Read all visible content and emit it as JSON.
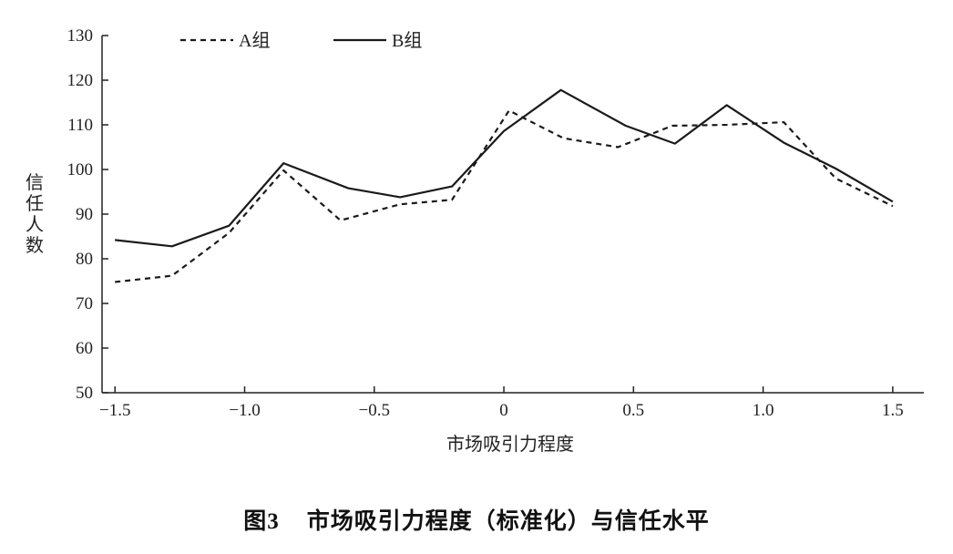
{
  "chart_data": {
    "type": "line",
    "xlabel": "市场吸引力程度",
    "ylabel": "信任人数",
    "xlim": [
      -1.55,
      1.62
    ],
    "ylim": [
      50,
      130
    ],
    "x_ticks": [
      -1.5,
      -1.0,
      -0.5,
      0,
      0.5,
      1.0,
      1.5
    ],
    "x_tick_labels": [
      "−1.5",
      "−1.0",
      "−0.5",
      "0",
      "0.5",
      "1.0",
      "1.5"
    ],
    "y_ticks": [
      50,
      60,
      70,
      80,
      90,
      100,
      110,
      120,
      130
    ],
    "y_tick_labels": [
      "50",
      "60",
      "70",
      "80",
      "90",
      "100",
      "110",
      "120",
      "130"
    ],
    "legend_position": "top-left",
    "grid": false,
    "series": [
      {
        "name": "A组",
        "style": "dashed",
        "x": [
          -1.5,
          -1.28,
          -1.06,
          -0.85,
          -0.63,
          -0.4,
          -0.2,
          0.02,
          0.23,
          0.44,
          0.65,
          0.86,
          1.08,
          1.28,
          1.5
        ],
        "y": [
          74.8,
          76.2,
          85.8,
          99.8,
          88.6,
          92.2,
          93.2,
          113.2,
          107.0,
          105.0,
          109.8,
          110.0,
          110.6,
          98.0,
          91.8
        ]
      },
      {
        "name": "B组",
        "style": "solid",
        "x": [
          -1.5,
          -1.28,
          -1.06,
          -0.85,
          -0.6,
          -0.4,
          -0.2,
          0.0,
          0.22,
          0.47,
          0.66,
          0.86,
          1.08,
          1.28,
          1.5
        ],
        "y": [
          84.2,
          82.8,
          87.4,
          101.4,
          95.8,
          93.8,
          96.2,
          108.6,
          117.8,
          109.8,
          105.8,
          114.4,
          106.0,
          100.2,
          92.8
        ]
      }
    ]
  },
  "caption": {
    "prefix": "图",
    "number": "3",
    "text": "市场吸引力程度（标准化）与信任水平"
  }
}
